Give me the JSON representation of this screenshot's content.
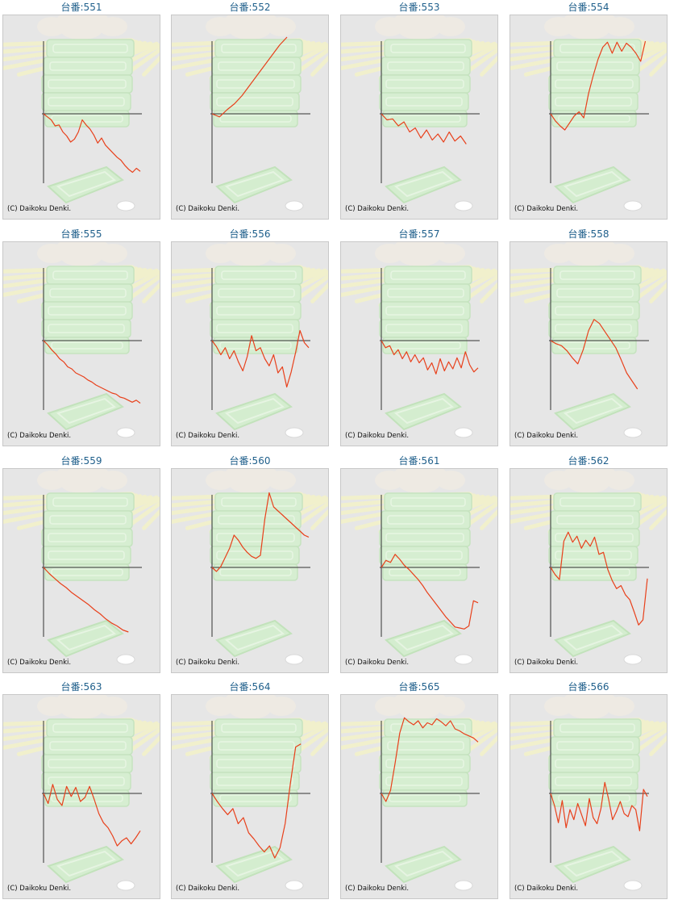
{
  "label_prefix": "台番:",
  "copyright": "(C) Daikoku Denki.",
  "colors": {
    "line": "#e8401b",
    "axis": "#333333",
    "label": "#1f5f8b",
    "panel": "#e6e6e6"
  },
  "chart_data": [
    {
      "type": "line",
      "title": "551",
      "y": [
        0,
        -0.15,
        -0.3,
        -0.6,
        -0.55,
        -0.9,
        -1.1,
        -1.4,
        -1.25,
        -0.9,
        -0.3,
        -0.55,
        -0.75,
        -1.05,
        -1.45,
        -1.2,
        -1.55,
        -1.75,
        -1.95,
        -2.15,
        -2.3,
        -2.55,
        -2.75,
        -2.9,
        -2.7,
        -2.85
      ]
    },
    {
      "type": "line",
      "title": "552",
      "y": [
        0,
        -0.15,
        0.2,
        0.5,
        0.9,
        1.4,
        1.9,
        2.4,
        2.9,
        3.4,
        3.8
      ]
    },
    {
      "type": "line",
      "title": "553",
      "y": [
        0,
        -0.3,
        -0.25,
        -0.6,
        -0.4,
        -0.9,
        -0.7,
        -1.2,
        -0.8,
        -1.3,
        -1.0,
        -1.4,
        -0.9,
        -1.35,
        -1.1,
        -1.5
      ]
    },
    {
      "type": "line",
      "title": "554",
      "y": [
        0,
        -0.35,
        -0.6,
        -0.8,
        -0.45,
        -0.1,
        0.1,
        -0.2,
        1.0,
        1.9,
        2.7,
        3.3,
        3.55,
        3.0,
        3.55,
        3.1,
        3.5,
        3.3,
        3.0,
        2.6,
        3.6
      ]
    },
    {
      "type": "line",
      "title": "555",
      "y": [
        0,
        -0.2,
        -0.45,
        -0.65,
        -0.9,
        -1.05,
        -1.3,
        -1.4,
        -1.6,
        -1.7,
        -1.8,
        -1.95,
        -2.05,
        -2.2,
        -2.3,
        -2.4,
        -2.5,
        -2.6,
        -2.65,
        -2.8,
        -2.85,
        -2.95,
        -3.05,
        -2.95,
        -3.1
      ]
    },
    {
      "type": "line",
      "title": "556",
      "y": [
        0,
        -0.3,
        -0.7,
        -0.35,
        -0.9,
        -0.5,
        -1.05,
        -1.5,
        -0.8,
        0.25,
        -0.5,
        -0.35,
        -0.9,
        -1.25,
        -0.7,
        -1.6,
        -1.3,
        -2.3,
        -1.55,
        -0.6,
        0.5,
        -0.1,
        -0.35
      ]
    },
    {
      "type": "line",
      "title": "557",
      "y": [
        0,
        -0.35,
        -0.25,
        -0.7,
        -0.45,
        -0.9,
        -0.55,
        -1.05,
        -0.7,
        -1.1,
        -0.85,
        -1.45,
        -1.1,
        -1.65,
        -0.9,
        -1.5,
        -1.05,
        -1.4,
        -0.85,
        -1.35,
        -0.55,
        -1.2,
        -1.55,
        -1.35
      ]
    },
    {
      "type": "line",
      "title": "558",
      "y": [
        0,
        -0.15,
        -0.25,
        -0.5,
        -0.85,
        -1.15,
        -0.45,
        0.5,
        1.05,
        0.85,
        0.45,
        0.05,
        -0.35,
        -0.95,
        -1.6,
        -2.0,
        -2.4
      ]
    },
    {
      "type": "line",
      "title": "559",
      "y": [
        0,
        -0.3,
        -0.55,
        -0.8,
        -1.0,
        -1.25,
        -1.45,
        -1.65,
        -1.85,
        -2.1,
        -2.3,
        -2.55,
        -2.75,
        -2.9,
        -3.1,
        -3.2
      ]
    },
    {
      "type": "line",
      "title": "560",
      "y": [
        0,
        -0.2,
        0.05,
        0.5,
        0.95,
        1.6,
        1.35,
        1.0,
        0.75,
        0.55,
        0.45,
        0.6,
        2.4,
        3.7,
        3.0,
        2.8,
        2.6,
        2.4,
        2.2,
        2.0,
        1.8,
        1.6,
        1.5
      ]
    },
    {
      "type": "line",
      "title": "561",
      "y": [
        0,
        0.35,
        0.25,
        0.65,
        0.4,
        0.1,
        -0.1,
        -0.35,
        -0.6,
        -0.9,
        -1.25,
        -1.55,
        -1.85,
        -2.15,
        -2.45,
        -2.7,
        -2.95,
        -3.0,
        -3.05,
        -2.9,
        -1.65,
        -1.75
      ]
    },
    {
      "type": "line",
      "title": "562",
      "y": [
        0,
        -0.35,
        -0.6,
        1.3,
        1.75,
        1.25,
        1.55,
        0.95,
        1.35,
        1.05,
        1.5,
        0.65,
        0.75,
        -0.1,
        -0.65,
        -1.05,
        -0.9,
        -1.35,
        -1.6,
        -2.2,
        -2.85,
        -2.6,
        -0.55
      ]
    },
    {
      "type": "line",
      "title": "563",
      "y": [
        0,
        -0.5,
        0.45,
        -0.3,
        -0.6,
        0.35,
        -0.15,
        0.3,
        -0.4,
        -0.2,
        0.35,
        -0.3,
        -1.0,
        -1.45,
        -1.7,
        -2.1,
        -2.6,
        -2.35,
        -2.2,
        -2.5,
        -2.2,
        -1.85
      ]
    },
    {
      "type": "line",
      "title": "564",
      "y": [
        0,
        -0.4,
        -0.75,
        -1.05,
        -0.75,
        -1.5,
        -1.2,
        -1.95,
        -2.25,
        -2.6,
        -2.9,
        -2.6,
        -3.2,
        -2.7,
        -1.5,
        0.5,
        2.3,
        2.45
      ]
    },
    {
      "type": "line",
      "title": "565",
      "y": [
        0,
        -0.4,
        0.15,
        1.5,
        3.0,
        3.75,
        3.55,
        3.4,
        3.6,
        3.25,
        3.5,
        3.4,
        3.7,
        3.55,
        3.35,
        3.6,
        3.2,
        3.1,
        2.95,
        2.85,
        2.75,
        2.55
      ]
    },
    {
      "type": "line",
      "title": "566",
      "y": [
        0,
        -0.6,
        -1.45,
        -0.35,
        -1.7,
        -0.8,
        -1.3,
        -0.5,
        -1.05,
        -1.6,
        -0.25,
        -1.2,
        -1.5,
        -0.75,
        0.55,
        -0.3,
        -1.3,
        -0.9,
        -0.4,
        -1.0,
        -1.15,
        -0.6,
        -0.8,
        -1.85,
        0.2,
        -0.15
      ]
    }
  ]
}
